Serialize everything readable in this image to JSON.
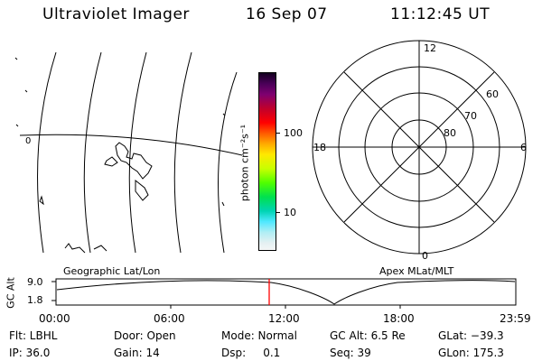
{
  "header": {
    "title": "Ultraviolet Imager",
    "date": "16 Sep 07",
    "time": "11:12:45 UT"
  },
  "geo_panel": {
    "label": "Geographic Lat/Lon",
    "marker": "0"
  },
  "colorbar": {
    "unit_label": "photon cm⁻²s⁻¹",
    "ticks": [
      "100",
      "10"
    ]
  },
  "polar_panel": {
    "label": "Apex MLat/MLT",
    "mlt_labels": {
      "top": "12",
      "left": "18",
      "right": "6",
      "bottom": "0"
    },
    "lat_labels": [
      "60",
      "70",
      "80"
    ]
  },
  "altitude_plot": {
    "ylabel": "GC Alt",
    "y_ticks": [
      "9.0",
      "1.8"
    ],
    "x_ticks": [
      "00:00",
      "06:00",
      "12:00",
      "18:00",
      "23:59"
    ],
    "current_time_marker_color": "#ff0000"
  },
  "info": {
    "filter": "Flt: LBHL",
    "ip": "IP: 36.0",
    "door": "Door: Open",
    "gain": "Gain: 14",
    "mode": "Mode: Normal",
    "dsp": "Dsp:     0.1",
    "gc_alt": "GC Alt: 6.5 Re",
    "seq": "Seq: 39",
    "glat": "GLat: −39.3",
    "glon": "GLon: 175.3"
  }
}
